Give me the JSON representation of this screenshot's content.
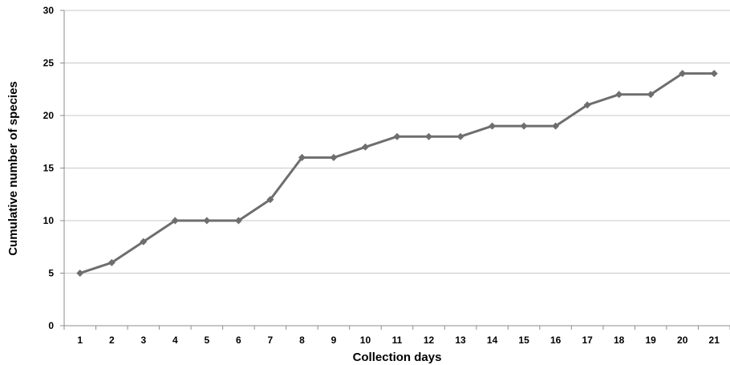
{
  "chart_data": {
    "type": "line",
    "title": "",
    "xlabel": "Collection days",
    "ylabel": "Cumulative number of species",
    "categories": [
      "1",
      "2",
      "3",
      "4",
      "5",
      "6",
      "7",
      "8",
      "9",
      "10",
      "11",
      "12",
      "13",
      "14",
      "15",
      "16",
      "17",
      "18",
      "19",
      "20",
      "21"
    ],
    "series": [
      {
        "name": "",
        "values": [
          5,
          6,
          8,
          10,
          10,
          10,
          12,
          16,
          16,
          17,
          18,
          18,
          18,
          19,
          19,
          19,
          21,
          22,
          22,
          24,
          24
        ],
        "color": "#6e6e6e"
      }
    ],
    "ylim": [
      0,
      30
    ],
    "yticks": [
      0,
      5,
      10,
      15,
      20,
      25,
      30
    ],
    "grid": true,
    "legend": "none",
    "marker": "diamond"
  }
}
